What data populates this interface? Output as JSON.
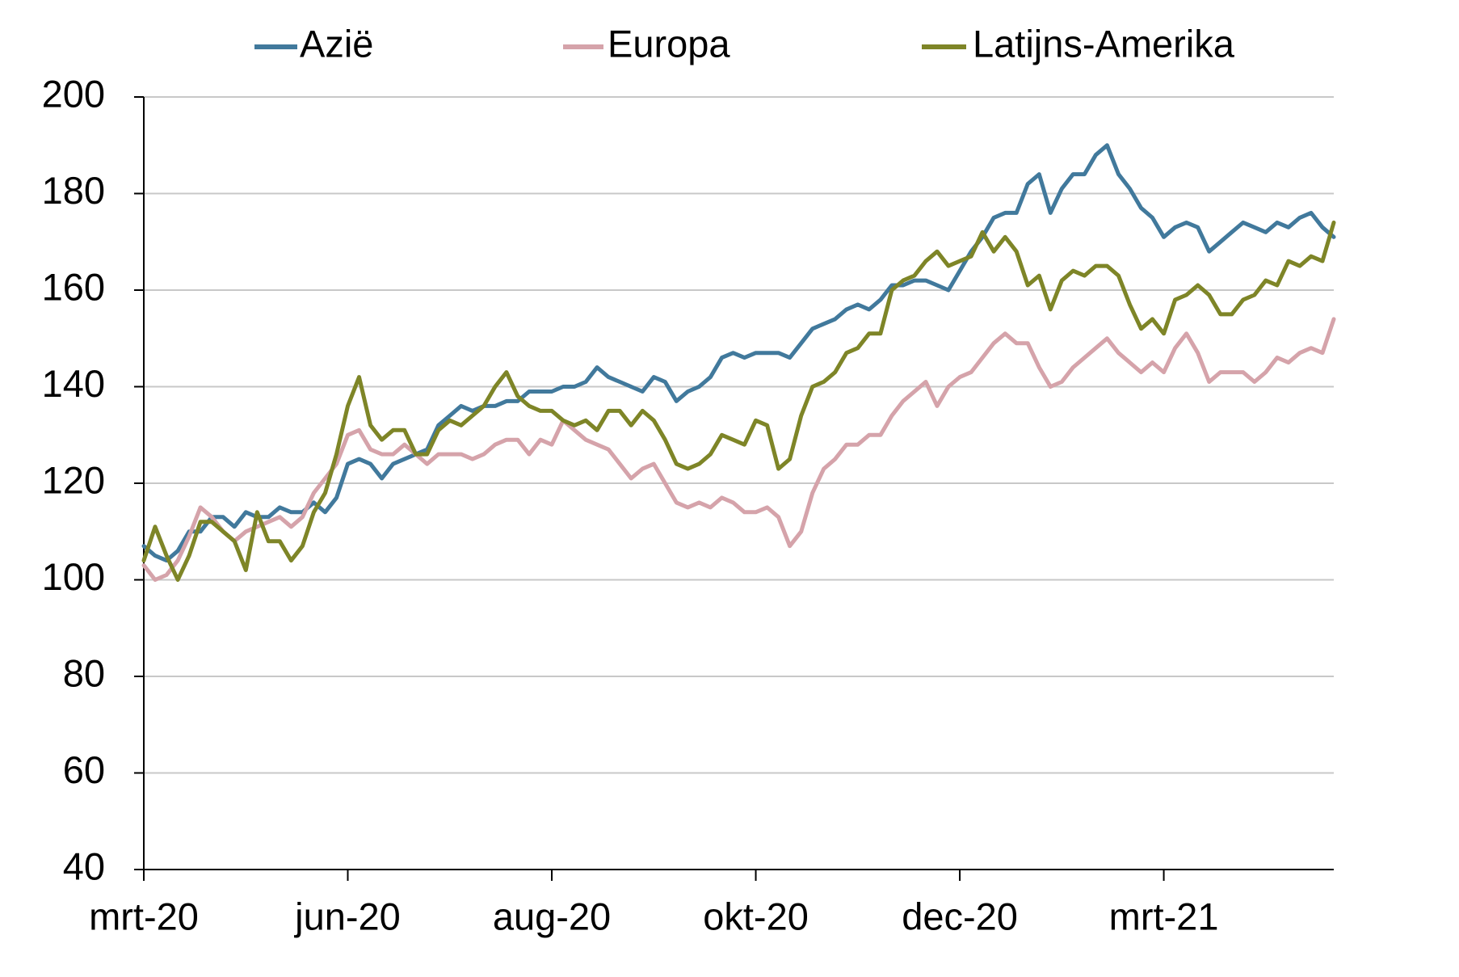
{
  "chart_data": {
    "type": "line",
    "title": "",
    "xlabel": "",
    "ylabel": "",
    "ylim": [
      40,
      200
    ],
    "yticks": [
      40,
      60,
      80,
      100,
      120,
      140,
      160,
      180,
      200
    ],
    "xticklabels": [
      "mrt-20",
      "jun-20",
      "aug-20",
      "okt-20",
      "dec-20",
      "mrt-21"
    ],
    "grid": "horizontal",
    "legend_position": "top",
    "series": [
      {
        "name": "Azië",
        "color": "#41799C",
        "values": [
          107,
          105,
          104,
          106,
          110,
          110,
          113,
          113,
          111,
          114,
          113,
          113,
          115,
          114,
          114,
          116,
          114,
          117,
          124,
          125,
          124,
          121,
          124,
          125,
          126,
          127,
          132,
          134,
          136,
          135,
          136,
          136,
          137,
          137,
          139,
          139,
          139,
          140,
          140,
          141,
          144,
          142,
          141,
          140,
          139,
          142,
          141,
          137,
          139,
          140,
          142,
          146,
          147,
          146,
          147,
          147,
          147,
          146,
          149,
          152,
          153,
          154,
          156,
          157,
          156,
          158,
          161,
          161,
          162,
          162,
          161,
          160,
          164,
          168,
          171,
          175,
          176,
          176,
          182,
          184,
          176,
          181,
          184,
          184,
          188,
          190,
          184,
          181,
          177,
          175,
          171,
          173,
          174,
          173,
          168,
          170,
          172,
          174,
          173,
          172,
          174,
          173,
          175,
          176,
          173,
          171
        ]
      },
      {
        "name": "Europa",
        "color": "#D5A3AA",
        "values": [
          103,
          100,
          101,
          104,
          109,
          115,
          113,
          110,
          108,
          110,
          111,
          112,
          113,
          111,
          113,
          118,
          121,
          124,
          130,
          131,
          127,
          126,
          126,
          128,
          126,
          124,
          126,
          126,
          126,
          125,
          126,
          128,
          129,
          129,
          126,
          129,
          128,
          133,
          131,
          129,
          128,
          127,
          124,
          121,
          123,
          124,
          120,
          116,
          115,
          116,
          115,
          117,
          116,
          114,
          114,
          115,
          113,
          107,
          110,
          118,
          123,
          125,
          128,
          128,
          130,
          130,
          134,
          137,
          139,
          141,
          136,
          140,
          142,
          143,
          146,
          149,
          151,
          149,
          149,
          144,
          140,
          141,
          144,
          146,
          148,
          150,
          147,
          145,
          143,
          145,
          143,
          148,
          151,
          147,
          141,
          143,
          143,
          143,
          141,
          143,
          146,
          145,
          147,
          148,
          147,
          154
        ]
      },
      {
        "name": "Latijns-Amerika",
        "color": "#7E8527",
        "values": [
          104,
          111,
          105,
          100,
          105,
          112,
          112,
          110,
          108,
          102,
          114,
          108,
          108,
          104,
          107,
          114,
          118,
          126,
          136,
          142,
          132,
          129,
          131,
          131,
          126,
          126,
          131,
          133,
          132,
          134,
          136,
          140,
          143,
          138,
          136,
          135,
          135,
          133,
          132,
          133,
          131,
          135,
          135,
          132,
          135,
          133,
          129,
          124,
          123,
          124,
          126,
          130,
          129,
          128,
          133,
          132,
          123,
          125,
          134,
          140,
          141,
          143,
          147,
          148,
          151,
          151,
          160,
          162,
          163,
          166,
          168,
          165,
          166,
          167,
          172,
          168,
          171,
          168,
          161,
          163,
          156,
          162,
          164,
          163,
          165,
          165,
          163,
          157,
          152,
          154,
          151,
          158,
          159,
          161,
          159,
          155,
          155,
          158,
          159,
          162,
          161,
          166,
          165,
          167,
          166,
          174
        ]
      }
    ]
  }
}
